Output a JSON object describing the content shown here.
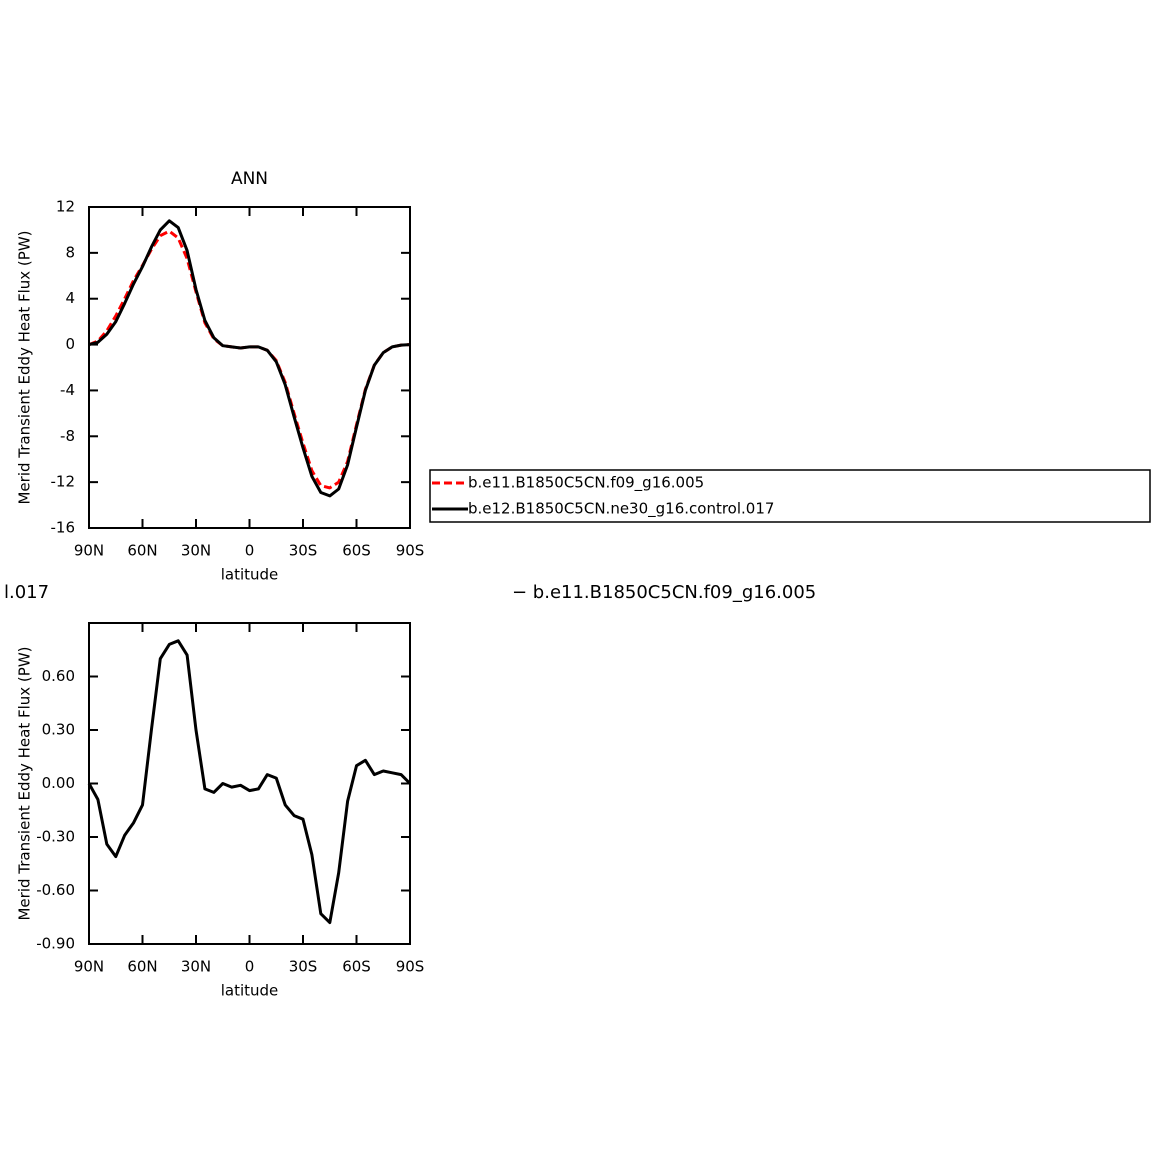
{
  "chart_data": [
    {
      "type": "line",
      "title": "ANN",
      "xlabel": "latitude",
      "ylabel": "Merid Transient Eddy Heat Flux (PW)",
      "x": [
        90,
        85,
        80,
        75,
        70,
        65,
        60,
        55,
        50,
        45,
        40,
        35,
        30,
        25,
        20,
        15,
        10,
        5,
        0,
        -5,
        -10,
        -15,
        -20,
        -25,
        -30,
        -35,
        -40,
        -45,
        -50,
        -55,
        -60,
        -65,
        -70,
        -75,
        -80,
        -85,
        -90
      ],
      "xlim": [
        90,
        -90
      ],
      "xticks": [
        {
          "value": 90,
          "label": "90N"
        },
        {
          "value": 60,
          "label": "60N"
        },
        {
          "value": 30,
          "label": "30N"
        },
        0,
        {
          "value": -30,
          "label": "30S"
        },
        {
          "value": -60,
          "label": "60S"
        },
        {
          "value": -90,
          "label": "90S"
        }
      ],
      "ylim": [
        -16,
        12
      ],
      "yticks": [
        12,
        8,
        4,
        0,
        -4,
        -8,
        -12,
        -16
      ],
      "legend": "right",
      "series": [
        {
          "name": "b.e11.B1850C5CN.f09_g16.005",
          "color": "#ff0000",
          "linestyle": "dashed",
          "values": [
            0,
            0.3,
            1.2,
            2.5,
            4.0,
            5.6,
            6.9,
            8.3,
            9.5,
            9.9,
            9.3,
            7.5,
            4.6,
            1.9,
            0.5,
            -0.1,
            -0.2,
            -0.3,
            -0.2,
            -0.2,
            -0.5,
            -1.4,
            -3.3,
            -6.0,
            -8.6,
            -11.0,
            -12.3,
            -12.5,
            -12.0,
            -10.2,
            -7.0,
            -3.9,
            -1.8,
            -0.7,
            -0.2,
            -0.05,
            0
          ]
        },
        {
          "name": "b.e12.B1850C5CN.ne30_g16.control.017",
          "color": "#000000",
          "linestyle": "solid",
          "values": [
            0,
            0.2,
            0.9,
            2.0,
            3.6,
            5.3,
            6.8,
            8.5,
            10.0,
            10.8,
            10.2,
            8.2,
            4.8,
            2.1,
            0.6,
            -0.1,
            -0.2,
            -0.3,
            -0.2,
            -0.2,
            -0.5,
            -1.5,
            -3.5,
            -6.3,
            -9.0,
            -11.5,
            -12.9,
            -13.2,
            -12.6,
            -10.5,
            -7.2,
            -4.0,
            -1.8,
            -0.7,
            -0.2,
            -0.05,
            0
          ]
        }
      ]
    },
    {
      "type": "line",
      "title_fragments": [
        "l.017",
        "− b.e11.B1850C5CN.f09_g16.005"
      ],
      "xlabel": "latitude",
      "ylabel": "Merid Transient Eddy Heat Flux (PW)",
      "x": [
        90,
        85,
        80,
        75,
        70,
        65,
        60,
        55,
        50,
        45,
        40,
        35,
        30,
        25,
        20,
        15,
        10,
        5,
        0,
        -5,
        -10,
        -15,
        -20,
        -25,
        -30,
        -35,
        -40,
        -45,
        -50,
        -55,
        -60,
        -65,
        -70,
        -75,
        -80,
        -85,
        -90
      ],
      "xlim": [
        90,
        -90
      ],
      "xticks": [
        {
          "value": 90,
          "label": "90N"
        },
        {
          "value": 60,
          "label": "60N"
        },
        {
          "value": 30,
          "label": "30N"
        },
        0,
        {
          "value": -30,
          "label": "30S"
        },
        {
          "value": -60,
          "label": "60S"
        },
        {
          "value": -90,
          "label": "90S"
        }
      ],
      "ylim": [
        -0.9,
        0.9
      ],
      "yticks": [
        {
          "value": 0.6,
          "label": "0.60"
        },
        {
          "value": 0.3,
          "label": "0.30"
        },
        {
          "value": 0,
          "label": "0.00"
        },
        {
          "value": -0.3,
          "label": "-0.30"
        },
        {
          "value": -0.6,
          "label": "-0.60"
        },
        {
          "value": -0.9,
          "label": "-0.90"
        }
      ],
      "series": [
        {
          "color": "#000000",
          "linestyle": "solid",
          "values": [
            0,
            -0.09,
            -0.34,
            -0.41,
            -0.29,
            -0.22,
            -0.12,
            0.3,
            0.7,
            0.78,
            0.8,
            0.72,
            0.3,
            -0.03,
            -0.05,
            0.0,
            -0.02,
            -0.01,
            -0.04,
            -0.03,
            0.05,
            0.03,
            -0.12,
            -0.18,
            -0.2,
            -0.4,
            -0.73,
            -0.78,
            -0.5,
            -0.1,
            0.1,
            0.13,
            0.05,
            0.07,
            0.06,
            0.05,
            0
          ]
        }
      ]
    }
  ]
}
